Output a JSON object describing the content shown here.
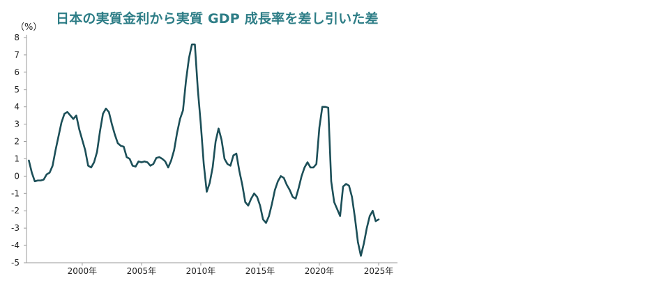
{
  "chart_data": {
    "type": "line",
    "title": "日本の実質金利から実質 GDP 成長率を差し引いた差",
    "unit_label": "（%）",
    "xlabel": "",
    "ylabel": "",
    "ylim": [
      -5,
      8
    ],
    "xlim": [
      1995.3,
      2026.0
    ],
    "grid": false,
    "y_ticks": [
      8,
      7,
      6,
      5,
      4,
      3,
      2,
      1,
      0,
      -1,
      -2,
      -3,
      -4,
      -5
    ],
    "x_ticks": [
      2000,
      2005,
      2010,
      2015,
      2020,
      2025
    ],
    "x_tick_labels": [
      "2000年",
      "2005年",
      "2010年",
      "2015年",
      "2020年",
      "2025年"
    ],
    "line_color": "#1c4f58",
    "title_color": "#2d7d86",
    "series": [
      {
        "x": [
          1995.5,
          1995.75,
          1996.0,
          1996.25,
          1996.5,
          1996.75,
          1997.0,
          1997.25,
          1997.5,
          1997.75,
          1998.0,
          1998.25,
          1998.5,
          1998.75,
          1999.0,
          1999.25,
          1999.5,
          1999.75,
          2000.0,
          2000.25,
          2000.5,
          2000.75,
          2001.0,
          2001.25,
          2001.5,
          2001.75,
          2002.0,
          2002.25,
          2002.5,
          2002.75,
          2003.0,
          2003.25,
          2003.5,
          2003.75,
          2004.0,
          2004.25,
          2004.5,
          2004.75,
          2005.0,
          2005.25,
          2005.5,
          2005.75,
          2006.0,
          2006.25,
          2006.5,
          2006.75,
          2007.0,
          2007.25,
          2007.5,
          2007.75,
          2008.0,
          2008.25,
          2008.5,
          2008.75,
          2009.0,
          2009.25,
          2009.5,
          2009.75,
          2010.0,
          2010.25,
          2010.5,
          2010.75,
          2011.0,
          2011.25,
          2011.5,
          2011.75,
          2012.0,
          2012.25,
          2012.5,
          2012.75,
          2013.0,
          2013.25,
          2013.5,
          2013.75,
          2014.0,
          2014.25,
          2014.5,
          2014.75,
          2015.0,
          2015.25,
          2015.5,
          2015.75,
          2016.0,
          2016.25,
          2016.5,
          2016.75,
          2017.0,
          2017.25,
          2017.5,
          2017.75,
          2018.0,
          2018.25,
          2018.5,
          2018.75,
          2019.0,
          2019.25,
          2019.5,
          2019.75,
          2020.0,
          2020.25,
          2020.5,
          2020.75,
          2021.0,
          2021.25,
          2021.5,
          2021.75,
          2022.0,
          2022.25,
          2022.5,
          2022.75,
          2023.0,
          2023.25,
          2023.5,
          2023.75,
          2024.0,
          2024.25,
          2024.5,
          2024.75,
          2025.0
        ],
        "y": [
          0.9,
          0.2,
          -0.3,
          -0.25,
          -0.25,
          -0.2,
          0.1,
          0.2,
          0.6,
          1.5,
          2.3,
          3.1,
          3.6,
          3.7,
          3.5,
          3.3,
          3.5,
          2.7,
          2.1,
          1.5,
          0.6,
          0.5,
          0.8,
          1.4,
          2.6,
          3.6,
          3.9,
          3.7,
          3.0,
          2.4,
          1.9,
          1.75,
          1.7,
          1.1,
          1.0,
          0.6,
          0.55,
          0.85,
          0.8,
          0.85,
          0.8,
          0.6,
          0.7,
          1.05,
          1.1,
          1.0,
          0.85,
          0.5,
          0.9,
          1.5,
          2.5,
          3.3,
          3.8,
          5.5,
          6.8,
          7.6,
          7.6,
          5.0,
          3.0,
          0.7,
          -0.9,
          -0.4,
          0.5,
          2.0,
          2.75,
          2.1,
          1.0,
          0.7,
          0.6,
          1.2,
          1.3,
          0.3,
          -0.5,
          -1.5,
          -1.7,
          -1.3,
          -1.0,
          -1.2,
          -1.7,
          -2.5,
          -2.7,
          -2.3,
          -1.6,
          -0.8,
          -0.3,
          0.0,
          -0.1,
          -0.5,
          -0.8,
          -1.2,
          -1.3,
          -0.7,
          0.0,
          0.5,
          0.8,
          0.5,
          0.5,
          0.7,
          2.8,
          4.0,
          4.0,
          3.95,
          -0.3,
          -1.5,
          -1.9,
          -2.3,
          -0.6,
          -0.45,
          -0.55,
          -1.2,
          -2.4,
          -3.8,
          -4.6,
          -3.9,
          -3.0,
          -2.3,
          -2.0,
          -2.6,
          -2.5
        ]
      }
    ]
  }
}
